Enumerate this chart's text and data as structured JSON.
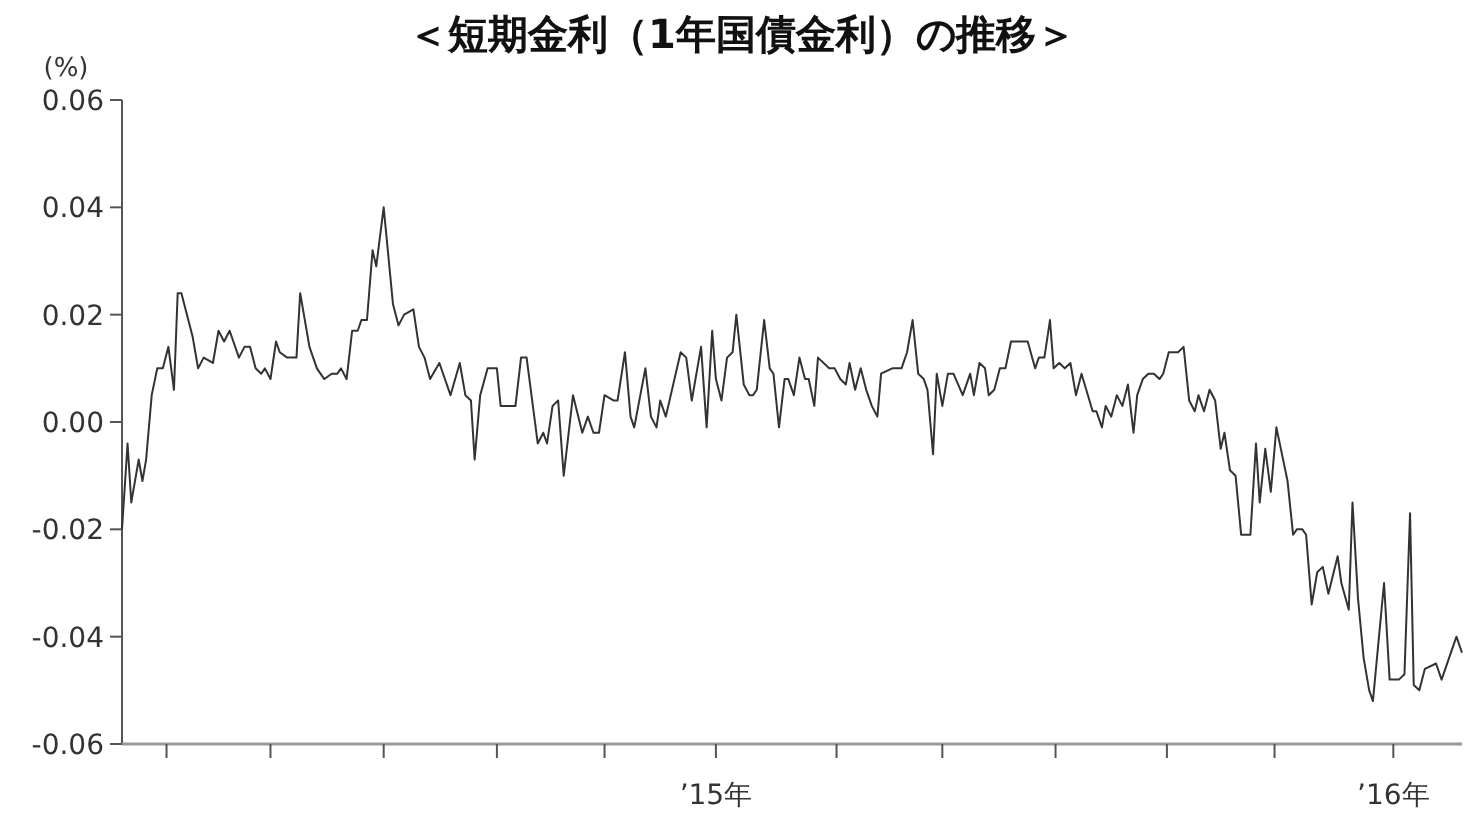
{
  "chart_data": {
    "type": "line",
    "title": "＜短期金利（1年国債金利）の推移＞",
    "ylabel": "(%)",
    "color": "#333333",
    "xlim": [
      "2014-02-15",
      "2016-02-07"
    ],
    "ylim": [
      -0.06,
      0.06
    ],
    "yticks": [
      -0.06,
      -0.04,
      -0.02,
      {
        "value": 0,
        "label": "0.00"
      },
      0.02,
      0.04,
      0.06
    ],
    "xticks": [
      {
        "value": "2014-03-11",
        "label": null
      },
      {
        "value": "2014-05-06",
        "label": null
      },
      {
        "value": "2014-07-06",
        "label": null
      },
      {
        "value": "2014-09-05",
        "label": null
      },
      {
        "value": "2014-11-02",
        "label": null
      },
      {
        "value": "2015-01-01",
        "label": "’15年"
      },
      {
        "value": "2015-03-07",
        "label": null
      },
      {
        "value": "2015-05-03",
        "label": null
      },
      {
        "value": "2015-07-03",
        "label": null
      },
      {
        "value": "2015-09-01",
        "label": null
      },
      {
        "value": "2015-10-29",
        "label": null
      },
      {
        "value": "2016-01-01",
        "label": "’16年"
      }
    ],
    "x": [
      "2014-02-15",
      "2014-02-18",
      "2014-02-20",
      "2014-02-24",
      "2014-02-26",
      "2014-02-28",
      "2014-03-03",
      "2014-03-06",
      "2014-03-09",
      "2014-03-12",
      "2014-03-15",
      "2014-03-17",
      "2014-03-19",
      "2014-03-25",
      "2014-03-28",
      "2014-03-31",
      "2014-04-05",
      "2014-04-08",
      "2014-04-11",
      "2014-04-14",
      "2014-04-16",
      "2014-04-19",
      "2014-04-22",
      "2014-04-25",
      "2014-04-28",
      "2014-05-01",
      "2014-05-03",
      "2014-05-06",
      "2014-05-09",
      "2014-05-11",
      "2014-05-15",
      "2014-05-20",
      "2014-05-22",
      "2014-05-27",
      "2014-05-31",
      "2014-06-04",
      "2014-06-08",
      "2014-06-11",
      "2014-06-13",
      "2014-06-16",
      "2014-06-19",
      "2014-06-22",
      "2014-06-24",
      "2014-06-27",
      "2014-06-30",
      "2014-07-02",
      "2014-07-06",
      "2014-07-11",
      "2014-07-14",
      "2014-07-17",
      "2014-07-22",
      "2014-07-25",
      "2014-07-28",
      "2014-07-31",
      "2014-08-05",
      "2014-08-11",
      "2014-08-16",
      "2014-08-19",
      "2014-08-22",
      "2014-08-24",
      "2014-08-27",
      "2014-08-31",
      "2014-09-05",
      "2014-09-07",
      "2014-09-15",
      "2014-09-18",
      "2014-09-21",
      "2014-09-27",
      "2014-09-30",
      "2014-10-02",
      "2014-10-05",
      "2014-10-08",
      "2014-10-11",
      "2014-10-16",
      "2014-10-21",
      "2014-10-24",
      "2014-10-27",
      "2014-10-30",
      "2014-11-02",
      "2014-11-07",
      "2014-11-09",
      "2014-11-13",
      "2014-11-16",
      "2014-11-18",
      "2014-11-24",
      "2014-11-27",
      "2014-11-30",
      "2014-12-02",
      "2014-12-05",
      "2014-12-13",
      "2014-12-16",
      "2014-12-19",
      "2014-12-24",
      "2014-12-27",
      "2014-12-30",
      "2015-01-01",
      "2015-01-04",
      "2015-01-07",
      "2015-01-10",
      "2015-01-12",
      "2015-01-16",
      "2015-01-19",
      "2015-01-21",
      "2015-01-23",
      "2015-01-27",
      "2015-01-30",
      "2015-02-01",
      "2015-02-04",
      "2015-02-07",
      "2015-02-09",
      "2015-02-12",
      "2015-02-15",
      "2015-02-18",
      "2015-02-20",
      "2015-02-23",
      "2015-02-25",
      "2015-03-03",
      "2015-03-06",
      "2015-03-09",
      "2015-03-12",
      "2015-03-14",
      "2015-03-17",
      "2015-03-20",
      "2015-03-23",
      "2015-03-26",
      "2015-03-29",
      "2015-03-31",
      "2015-04-06",
      "2015-04-11",
      "2015-04-14",
      "2015-04-17",
      "2015-04-20",
      "2015-04-23",
      "2015-04-25",
      "2015-04-28",
      "2015-04-30",
      "2015-05-03",
      "2015-05-06",
      "2015-05-09",
      "2015-05-14",
      "2015-05-18",
      "2015-05-20",
      "2015-05-23",
      "2015-05-26",
      "2015-05-28",
      "2015-05-31",
      "2015-06-03",
      "2015-06-06",
      "2015-06-09",
      "2015-06-11",
      "2015-06-18",
      "2015-06-22",
      "2015-06-24",
      "2015-06-27",
      "2015-06-30",
      "2015-07-02",
      "2015-07-05",
      "2015-07-08",
      "2015-07-11",
      "2015-07-14",
      "2015-07-17",
      "2015-07-23",
      "2015-07-25",
      "2015-07-28",
      "2015-07-30",
      "2015-08-02",
      "2015-08-05",
      "2015-08-08",
      "2015-08-11",
      "2015-08-14",
      "2015-08-16",
      "2015-08-19",
      "2015-08-22",
      "2015-08-25",
      "2015-08-28",
      "2015-08-30",
      "2015-09-02",
      "2015-09-07",
      "2015-09-10",
      "2015-09-13",
      "2015-09-16",
      "2015-09-18",
      "2015-09-21",
      "2015-09-24",
      "2015-09-27",
      "2015-09-30",
      "2015-10-02",
      "2015-10-05",
      "2015-10-08",
      "2015-10-11",
      "2015-10-16",
      "2015-10-19",
      "2015-10-21",
      "2015-10-24",
      "2015-10-27",
      "2015-10-30",
      "2015-11-05",
      "2015-11-08",
      "2015-11-10",
      "2015-11-13",
      "2015-11-15",
      "2015-11-18",
      "2015-11-21",
      "2015-11-24",
      "2015-11-27",
      "2015-12-02",
      "2015-12-04",
      "2015-12-08",
      "2015-12-10",
      "2015-12-13",
      "2015-12-16",
      "2015-12-19",
      "2015-12-21",
      "2015-12-27",
      "2015-12-30",
      "2016-01-04",
      "2016-01-07",
      "2016-01-10",
      "2016-01-12",
      "2016-01-15",
      "2016-01-18",
      "2016-01-24",
      "2016-01-27",
      "2016-02-04",
      "2016-02-07"
    ],
    "values": [
      -0.02,
      -0.004,
      -0.015,
      -0.007,
      -0.011,
      -0.007,
      0.005,
      0.01,
      0.01,
      0.014,
      0.006,
      0.024,
      0.024,
      0.016,
      0.01,
      0.012,
      0.011,
      0.017,
      0.015,
      0.017,
      0.015,
      0.012,
      0.014,
      0.014,
      0.01,
      0.009,
      0.01,
      0.008,
      0.015,
      0.013,
      0.012,
      0.012,
      0.024,
      0.014,
      0.01,
      0.008,
      0.009,
      0.009,
      0.01,
      0.008,
      0.017,
      0.017,
      0.019,
      0.019,
      0.032,
      0.029,
      0.04,
      0.022,
      0.018,
      0.02,
      0.021,
      0.014,
      0.012,
      0.008,
      0.011,
      0.005,
      0.011,
      0.005,
      0.004,
      -0.007,
      0.005,
      0.01,
      0.01,
      0.003,
      0.003,
      0.012,
      0.012,
      -0.004,
      -0.002,
      -0.004,
      0.003,
      0.004,
      -0.01,
      0.005,
      -0.002,
      0.001,
      -0.002,
      -0.002,
      0.005,
      0.004,
      0.004,
      0.013,
      0.001,
      -0.001,
      0.01,
      0.001,
      -0.001,
      0.004,
      0.001,
      0.013,
      0.012,
      0.004,
      0.014,
      -0.001,
      0.017,
      0.008,
      0.004,
      0.012,
      0.013,
      0.02,
      0.007,
      0.005,
      0.005,
      0.006,
      0.019,
      0.01,
      0.009,
      -0.001,
      0.008,
      0.008,
      0.005,
      0.012,
      0.008,
      0.008,
      0.003,
      0.012,
      0.01,
      0.01,
      0.008,
      0.007,
      0.011,
      0.006,
      0.01,
      0.006,
      0.003,
      0.001,
      0.009,
      0.01,
      0.01,
      0.013,
      0.019,
      0.009,
      0.008,
      0.006,
      -0.006,
      0.009,
      0.003,
      0.009,
      0.009,
      0.005,
      0.009,
      0.005,
      0.011,
      0.01,
      0.005,
      0.006,
      0.01,
      0.01,
      0.015,
      0.015,
      0.015,
      0.01,
      0.012,
      0.012,
      0.019,
      0.01,
      0.011,
      0.01,
      0.011,
      0.005,
      0.009,
      0.002,
      0.002,
      -0.001,
      0.003,
      0.001,
      0.005,
      0.003,
      0.007,
      -0.002,
      0.005,
      0.008,
      0.009,
      0.009,
      0.008,
      0.009,
      0.013,
      0.013,
      0.014,
      0.004,
      0.002,
      0.005,
      0.002,
      0.006,
      0.004,
      -0.005,
      -0.002,
      -0.009,
      -0.01,
      -0.021,
      -0.021,
      -0.004,
      -0.015,
      -0.005,
      -0.013,
      -0.001,
      -0.011,
      -0.021,
      -0.02,
      -0.02,
      -0.021,
      -0.034,
      -0.028,
      -0.027,
      -0.032,
      -0.025,
      -0.03,
      -0.035,
      -0.015,
      -0.033,
      -0.044,
      -0.05,
      -0.052,
      -0.03,
      -0.048,
      -0.048,
      -0.047,
      -0.017,
      -0.049,
      -0.05,
      -0.046,
      -0.045,
      -0.048,
      -0.04,
      -0.043
    ]
  }
}
